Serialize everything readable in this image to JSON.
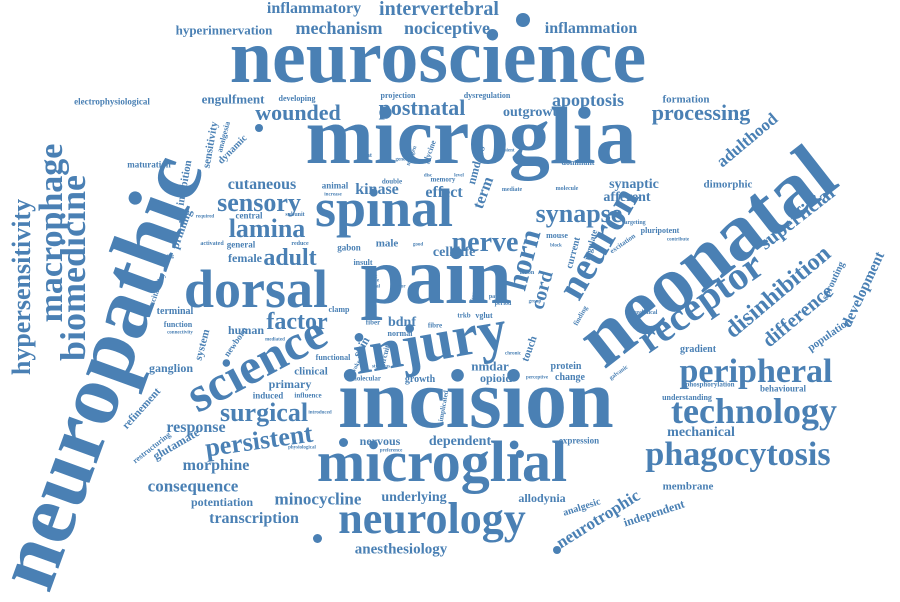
{
  "colors": {
    "text": "#4a80b4",
    "background": "#ffffff"
  },
  "words": {
    "neuroscience": "neuroscience",
    "microglia": "microglia",
    "neuropathic": "neuropathic",
    "incision": "incision",
    "pain": "pain",
    "neonatal": "neonatal",
    "spinal": "spinal",
    "dorsal": "dorsal",
    "injury": "injury",
    "microglial": "microglial",
    "science": "science",
    "neurology": "neurology",
    "receptor": "receptor",
    "technology": "technology",
    "phagocytosis": "phagocytosis",
    "peripheral": "peripheral",
    "neuron": "neuron",
    "horn": "horn",
    "biomedicine": "biomedicine",
    "macrophage": "macrophage",
    "hypersensitivity": "hypersensitivity",
    "surgical": "surgical",
    "persistent": "persistent",
    "sensory": "sensory",
    "lamina": "lamina",
    "adult": "adult",
    "factor": "factor",
    "nerve": "nerve",
    "synapse": "synapse",
    "wounded": "wounded",
    "postnatal": "postnatal",
    "processing": "processing",
    "mechanism": "mechanism",
    "nociceptive": "nociceptive",
    "inflammatory": "inflammatory",
    "intervertebral": "intervertebral",
    "inflammation": "inflammation",
    "hyperinnervation": "hyperinnervation",
    "electrophysiological": "electrophysiological",
    "engulfment": "engulfment",
    "developing": "developing",
    "projection": "projection",
    "dysregulation": "dysregulation",
    "apoptosis": "apoptosis",
    "outgrowth": "outgrowth",
    "formation": "formation",
    "adulthood": "adulthood",
    "maturation": "maturation",
    "cutaneous": "cutaneous",
    "kinase": "kinase",
    "effect": "effect",
    "term": "term",
    "cord": "cord",
    "synaptic": "synaptic",
    "afferent": "afferent",
    "dimorphic": "dimorphic",
    "superficial": "superficial",
    "disinhibition": "disinhibition",
    "difference": "difference",
    "development": "development",
    "sprouting": "sprouting",
    "population": "population",
    "gradient": "gradient",
    "phosphorylation": "phosphorylation",
    "behavioural": "behavioural",
    "understanding": "understanding",
    "mechanical": "mechanical",
    "expression": "expression",
    "membrane": "membrane",
    "neurotrophic": "neurotrophic",
    "independent": "independent",
    "analgesic": "analgesic",
    "allodynia": "allodynia",
    "underlying": "underlying",
    "anesthesiology": "anesthesiology",
    "minocycline": "minocycline",
    "transcription": "transcription",
    "potentiation": "potentiation",
    "consequence": "consequence",
    "morphine": "morphine",
    "glutamate": "glutamate",
    "restructuring": "restructuring",
    "refinement": "refinement",
    "ganglion": "ganglion",
    "response": "response",
    "dependent": "dependent",
    "nervous": "nervous",
    "human": "human",
    "newborn": "newborn",
    "system": "system",
    "clinical": "clinical",
    "primary": "primary",
    "induced": "induced",
    "influence": "influence",
    "growth": "growth",
    "opioid": "opioid",
    "nmdar": "nmdar",
    "touch": "touch",
    "protein": "protein",
    "change": "change",
    "bdnf": "bdnf",
    "cell": "cell",
    "life": "life",
    "male": "male",
    "female": "female",
    "general": "general",
    "central": "central",
    "priming": "priming",
    "inhibition": "inhibition",
    "sensitivity": "sensitivity",
    "dynamic": "dynamic",
    "analgesia": "analgesia",
    "excitability": "excitability",
    "terminal": "terminal",
    "function": "function",
    "animal": "animal",
    "double": "double",
    "memory": "memory",
    "nmdars": "nmdars",
    "glycine": "glycine",
    "mouse": "mouse",
    "skin": "skin",
    "insult": "insult",
    "gabon": "gabon",
    "clamp": "clamp",
    "functional": "functional",
    "current": "current",
    "dominant": "dominant",
    "molecule": "molecule",
    "excitation": "excitation",
    "pluripotent": "pluripotent",
    "targeting": "targeting",
    "trkb": "trkb",
    "vglut": "vglut",
    "finding": "finding",
    "preclinical": "preclinical",
    "galvanic": "galvanic",
    "period": "period",
    "mediate": "mediate",
    "subunit": "subunit",
    "activated": "activated",
    "required": "required",
    "reduce": "reduce",
    "root": "root",
    "fibre": "fibre",
    "fiber": "fiber",
    "normal": "normal",
    "molecular": "molecular",
    "evoked": "evoked",
    "patch": "patch",
    "anion": "anion",
    "group": "group",
    "increase": "increase",
    "following": "following",
    "connectivity": "connectivity",
    "mediated": "mediated",
    "introduced": "introduced",
    "physiological": "physiological",
    "preference": "preference",
    "implicated": "implicated",
    "circuit": "circuit",
    "chronic": "chronic",
    "regulate": "regulate",
    "local": "local",
    "role": "role",
    "good": "good",
    "prior": "prior",
    "block": "block",
    "stimulus": "stimulus",
    "tissue": "tissue",
    "disc": "disc",
    "level": "level",
    "rat": "rat",
    "genetic": "genetic",
    "mitogen": "mitogen",
    "contribute": "contribute",
    "transient": "transient",
    "perceptive": "perceptive",
    "ward": "ward"
  }
}
